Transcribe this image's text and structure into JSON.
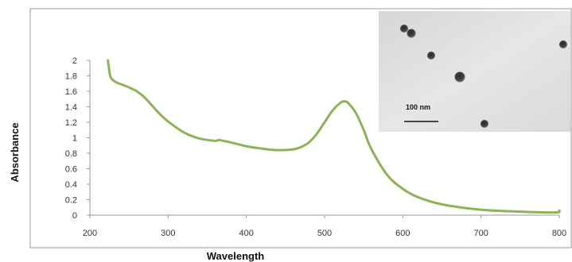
{
  "chart_data": {
    "type": "line",
    "title": "",
    "xlabel": "Wavelength",
    "ylabel": "Absorbance",
    "xlim": [
      200,
      800
    ],
    "ylim": [
      0,
      2
    ],
    "x_ticks": [
      "200",
      "300",
      "400",
      "500",
      "600",
      "700",
      "800"
    ],
    "y_ticks": [
      "0",
      "0.2",
      "0.4",
      "0.6",
      "0.8",
      "1",
      "1.2",
      "1.4",
      "1.6",
      "1.8",
      "2"
    ],
    "grid": false,
    "series": [
      {
        "color": "#8db356",
        "x": [
          223,
          226,
          230,
          235,
          240,
          250,
          260,
          270,
          280,
          290,
          300,
          320,
          340,
          360,
          365,
          380,
          400,
          420,
          440,
          460,
          470,
          480,
          490,
          500,
          510,
          520,
          525,
          530,
          540,
          550,
          560,
          580,
          600,
          620,
          650,
          700,
          750,
          795,
          800
        ],
        "y": [
          2.0,
          1.8,
          1.74,
          1.71,
          1.69,
          1.65,
          1.6,
          1.52,
          1.41,
          1.3,
          1.21,
          1.07,
          0.99,
          0.96,
          0.97,
          0.94,
          0.89,
          0.86,
          0.84,
          0.85,
          0.88,
          0.94,
          1.05,
          1.2,
          1.35,
          1.45,
          1.47,
          1.45,
          1.32,
          1.1,
          0.85,
          0.52,
          0.34,
          0.23,
          0.14,
          0.07,
          0.045,
          0.035,
          0.06
        ]
      }
    ],
    "inset": {
      "scale_bar_label": "100 nm",
      "background": "#e2e2e2",
      "particle_color": "#3a3a3a"
    }
  }
}
